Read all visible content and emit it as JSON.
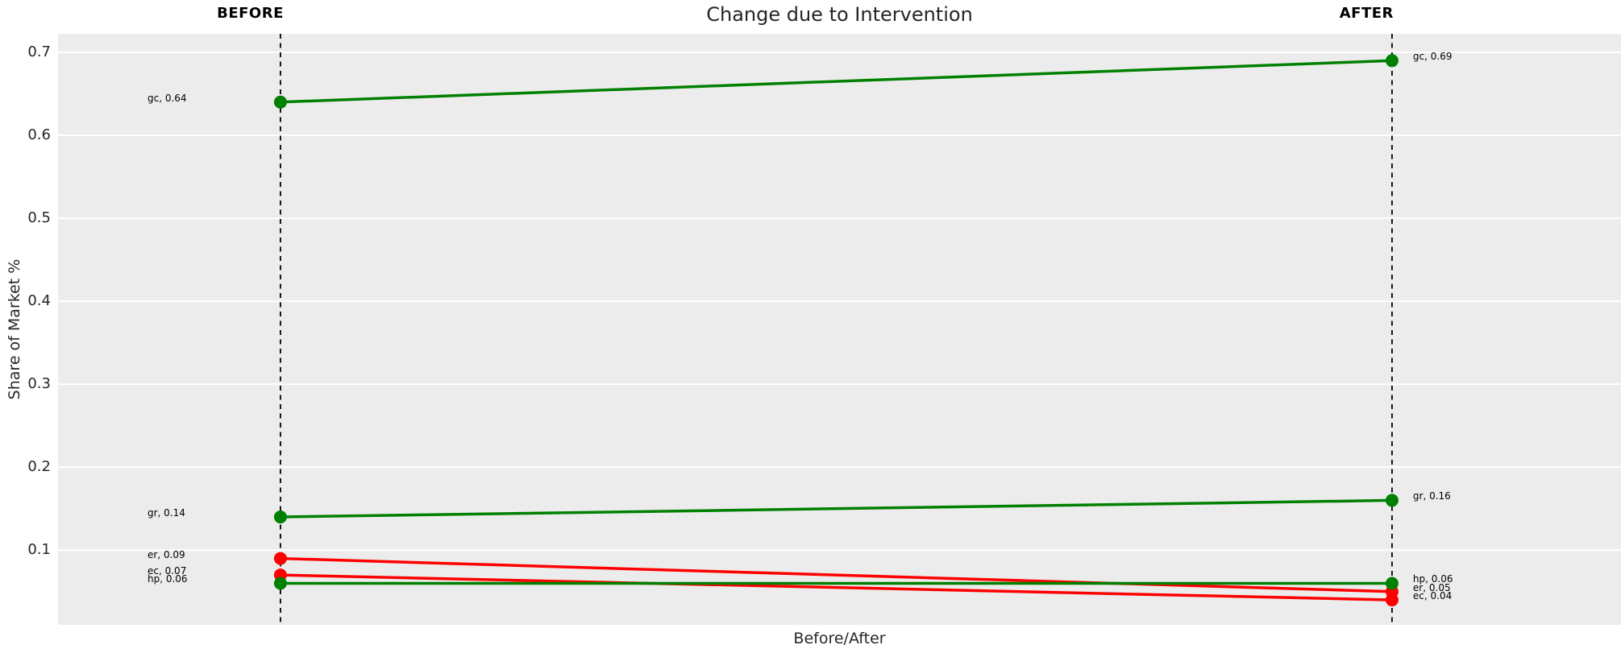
{
  "chart_data": {
    "type": "line",
    "subtype": "slopegraph",
    "title": "Change due to Intervention",
    "xlabel": "Before/After",
    "ylabel": "Share of Market %",
    "categories": [
      "BEFORE",
      "AFTER"
    ],
    "series": [
      {
        "name": "gc",
        "values": [
          0.64,
          0.69
        ],
        "color": "#008000",
        "labels": [
          "gc, 0.64",
          "gc, 0.69"
        ]
      },
      {
        "name": "gr",
        "values": [
          0.14,
          0.16
        ],
        "color": "#008000",
        "labels": [
          "gr, 0.14",
          "gr, 0.16"
        ]
      },
      {
        "name": "er",
        "values": [
          0.09,
          0.05
        ],
        "color": "#ff0000",
        "labels": [
          "er, 0.09",
          "er, 0.05"
        ]
      },
      {
        "name": "ec",
        "values": [
          0.07,
          0.04
        ],
        "color": "#ff0000",
        "labels": [
          "ec, 0.07",
          "ec, 0.04"
        ]
      },
      {
        "name": "hp",
        "values": [
          0.06,
          0.06
        ],
        "color": "#008000",
        "labels": [
          "hp, 0.06",
          "hp, 0.06"
        ]
      }
    ],
    "y_ticks": [
      {
        "value": 0.7,
        "label": "0.7"
      },
      {
        "value": 0.6,
        "label": "0.6"
      },
      {
        "value": 0.5,
        "label": "0.5"
      },
      {
        "value": 0.4,
        "label": "0.4"
      },
      {
        "value": 0.3,
        "label": "0.3"
      },
      {
        "value": 0.2,
        "label": "0.2"
      },
      {
        "value": 0.1,
        "label": "0.1"
      }
    ],
    "ylim": [
      0.01,
      0.7223
    ],
    "grid": true,
    "legend": "none",
    "colors": {
      "increase": "#008000",
      "decrease": "#ff0000",
      "plot_background": "#ececec",
      "grid_line": "#ffffff",
      "guide_line": "#000000"
    }
  }
}
